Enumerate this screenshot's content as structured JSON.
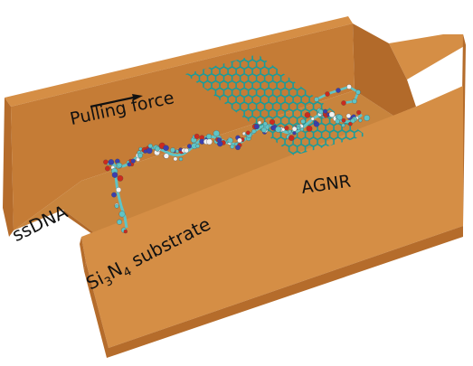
{
  "labels": {
    "pulling_force": "Pulling force",
    "agnr": "AGNR",
    "ssdna": "ssDNA",
    "substrate_si": "Si",
    "substrate_si_sub": "3",
    "substrate_n": "N",
    "substrate_n_sub": "4",
    "substrate_word": " substrate"
  },
  "colors": {
    "substrate_top": "#d58e45",
    "substrate_front": "#c57c36",
    "substrate_side": "#b56c2b",
    "channel_floor": "#c8843d",
    "channel_wall": "#b26a2a",
    "graphene_bond": "#1a9c9a",
    "dna_carbon": "#5fc4c6",
    "dna_oxygen": "#cc2a1e",
    "dna_nitrogen": "#3b3fae",
    "dna_hydrogen": "#f2f2f2",
    "arrow": "#111111"
  }
}
